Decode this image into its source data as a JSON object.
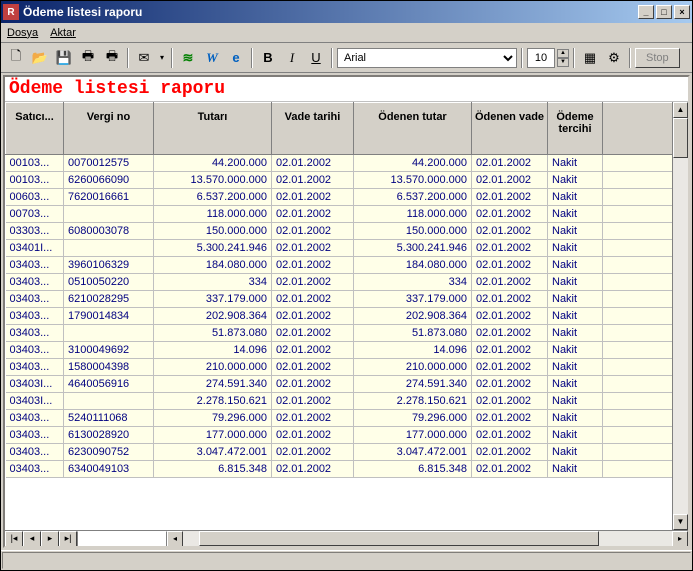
{
  "window": {
    "title": "Ödeme listesi raporu",
    "app_icon_letter": "R"
  },
  "menu": {
    "dosya": "Dosya",
    "aktar": "Aktar"
  },
  "toolbar": {
    "font_family": "Arial",
    "font_size": "10",
    "stop": "Stop",
    "bold": "B",
    "italic": "I",
    "underline": "U"
  },
  "report": {
    "title": "Ödeme listesi raporu"
  },
  "columns": {
    "satici": "Satıcı...",
    "vergi": "Vergi no",
    "tutar": "Tutarı",
    "vade": "Vade tarihi",
    "odenen_tutar": "Ödenen tutar",
    "odenen_vade": "Ödenen vade",
    "tercih": "Ödeme tercihi"
  },
  "rows": [
    {
      "s": "00103...",
      "v": "0070012575",
      "t": "44.200.000",
      "d": "02.01.2002",
      "ot": "44.200.000",
      "od": "02.01.2002",
      "tr": "Nakit"
    },
    {
      "s": "00103...",
      "v": "6260066090",
      "t": "13.570.000.000",
      "d": "02.01.2002",
      "ot": "13.570.000.000",
      "od": "02.01.2002",
      "tr": "Nakit"
    },
    {
      "s": "00603...",
      "v": "7620016661",
      "t": "6.537.200.000",
      "d": "02.01.2002",
      "ot": "6.537.200.000",
      "od": "02.01.2002",
      "tr": "Nakit"
    },
    {
      "s": "00703...",
      "v": "",
      "t": "118.000.000",
      "d": "02.01.2002",
      "ot": "118.000.000",
      "od": "02.01.2002",
      "tr": "Nakit"
    },
    {
      "s": "03303...",
      "v": "6080003078",
      "t": "150.000.000",
      "d": "02.01.2002",
      "ot": "150.000.000",
      "od": "02.01.2002",
      "tr": "Nakit"
    },
    {
      "s": "03401I...",
      "v": "",
      "t": "5.300.241.946",
      "d": "02.01.2002",
      "ot": "5.300.241.946",
      "od": "02.01.2002",
      "tr": "Nakit"
    },
    {
      "s": "03403...",
      "v": "3960106329",
      "t": "184.080.000",
      "d": "02.01.2002",
      "ot": "184.080.000",
      "od": "02.01.2002",
      "tr": "Nakit"
    },
    {
      "s": "03403...",
      "v": "0510050220",
      "t": "334",
      "d": "02.01.2002",
      "ot": "334",
      "od": "02.01.2002",
      "tr": "Nakit"
    },
    {
      "s": "03403...",
      "v": "6210028295",
      "t": "337.179.000",
      "d": "02.01.2002",
      "ot": "337.179.000",
      "od": "02.01.2002",
      "tr": "Nakit"
    },
    {
      "s": "03403...",
      "v": "1790014834",
      "t": "202.908.364",
      "d": "02.01.2002",
      "ot": "202.908.364",
      "od": "02.01.2002",
      "tr": "Nakit"
    },
    {
      "s": "03403...",
      "v": "",
      "t": "51.873.080",
      "d": "02.01.2002",
      "ot": "51.873.080",
      "od": "02.01.2002",
      "tr": "Nakit"
    },
    {
      "s": "03403...",
      "v": "3100049692",
      "t": "14.096",
      "d": "02.01.2002",
      "ot": "14.096",
      "od": "02.01.2002",
      "tr": "Nakit"
    },
    {
      "s": "03403...",
      "v": "1580004398",
      "t": "210.000.000",
      "d": "02.01.2002",
      "ot": "210.000.000",
      "od": "02.01.2002",
      "tr": "Nakit"
    },
    {
      "s": "03403I...",
      "v": "4640056916",
      "t": "274.591.340",
      "d": "02.01.2002",
      "ot": "274.591.340",
      "od": "02.01.2002",
      "tr": "Nakit"
    },
    {
      "s": "03403I...",
      "v": "",
      "t": "2.278.150.621",
      "d": "02.01.2002",
      "ot": "2.278.150.621",
      "od": "02.01.2002",
      "tr": "Nakit"
    },
    {
      "s": "03403...",
      "v": "5240111068",
      "t": "79.296.000",
      "d": "02.01.2002",
      "ot": "79.296.000",
      "od": "02.01.2002",
      "tr": "Nakit"
    },
    {
      "s": "03403...",
      "v": "6130028920",
      "t": "177.000.000",
      "d": "02.01.2002",
      "ot": "177.000.000",
      "od": "02.01.2002",
      "tr": "Nakit"
    },
    {
      "s": "03403...",
      "v": "6230090752",
      "t": "3.047.472.001",
      "d": "02.01.2002",
      "ot": "3.047.472.001",
      "od": "02.01.2002",
      "tr": "Nakit"
    },
    {
      "s": "03403...",
      "v": "6340049103",
      "t": "6.815.348",
      "d": "02.01.2002",
      "ot": "6.815.348",
      "od": "02.01.2002",
      "tr": "Nakit"
    }
  ]
}
